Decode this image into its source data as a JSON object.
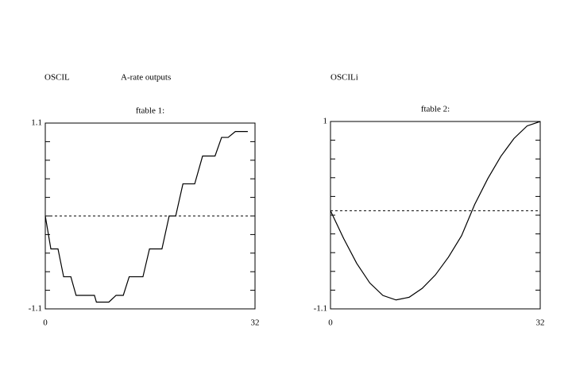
{
  "chart_data": [
    {
      "type": "line",
      "title": "ftable 1:",
      "annotations": [
        "OSCIL",
        "A-rate outputs"
      ],
      "x": [
        0,
        0.85,
        1.94,
        2.8,
        3.9,
        4.7,
        7.5,
        7.8,
        9.7,
        10.8,
        11.9,
        12.8,
        14.9,
        15.9,
        17.8,
        18.9,
        19.9,
        21,
        22.8,
        24,
        25.9,
        26.9,
        27.9,
        29,
        30.9
      ],
      "series": [
        {
          "color": "#000000",
          "values": [
            0,
            -0.39,
            -0.39,
            -0.72,
            -0.72,
            -0.94,
            -0.94,
            -1.02,
            -1.02,
            -0.94,
            -0.94,
            -0.72,
            -0.72,
            -0.39,
            -0.39,
            0,
            0,
            0.38,
            0.38,
            0.71,
            0.71,
            0.93,
            0.93,
            1.0,
            1.0
          ]
        }
      ],
      "xlim": [
        0,
        32
      ],
      "xticks": [
        0,
        32
      ],
      "ylim": [
        -1.1,
        1.1
      ],
      "yticks": [
        -1.1,
        1.1
      ],
      "minor_yticks": [
        -0.88,
        -0.66,
        -0.44,
        -0.22,
        0,
        0.22,
        0.44,
        0.66,
        0.88
      ],
      "reference_line": 0
    },
    {
      "type": "line",
      "title": "ftable 2:",
      "annotations": [
        "OSCILi"
      ],
      "x": [
        0,
        2,
        4,
        6,
        8,
        10,
        12,
        14,
        16,
        18,
        20,
        22,
        24,
        26,
        28,
        30,
        32
      ],
      "series": [
        {
          "color": "#000000",
          "values": [
            0,
            -0.31,
            -0.59,
            -0.81,
            -0.95,
            -1.0,
            -0.97,
            -0.87,
            -0.72,
            -0.52,
            -0.28,
            0.07,
            0.36,
            0.61,
            0.81,
            0.95,
            1.0
          ]
        }
      ],
      "xlim": [
        0,
        32
      ],
      "xticks": [
        0,
        32
      ],
      "ylim": [
        -1.1,
        1
      ],
      "yticks": [
        -1.1,
        1
      ],
      "minor_yticks": [
        -0.89,
        -0.68,
        -0.47,
        -0.26,
        -0.05,
        0.16,
        0.37,
        0.58,
        0.79
      ],
      "reference_line": 0
    }
  ]
}
